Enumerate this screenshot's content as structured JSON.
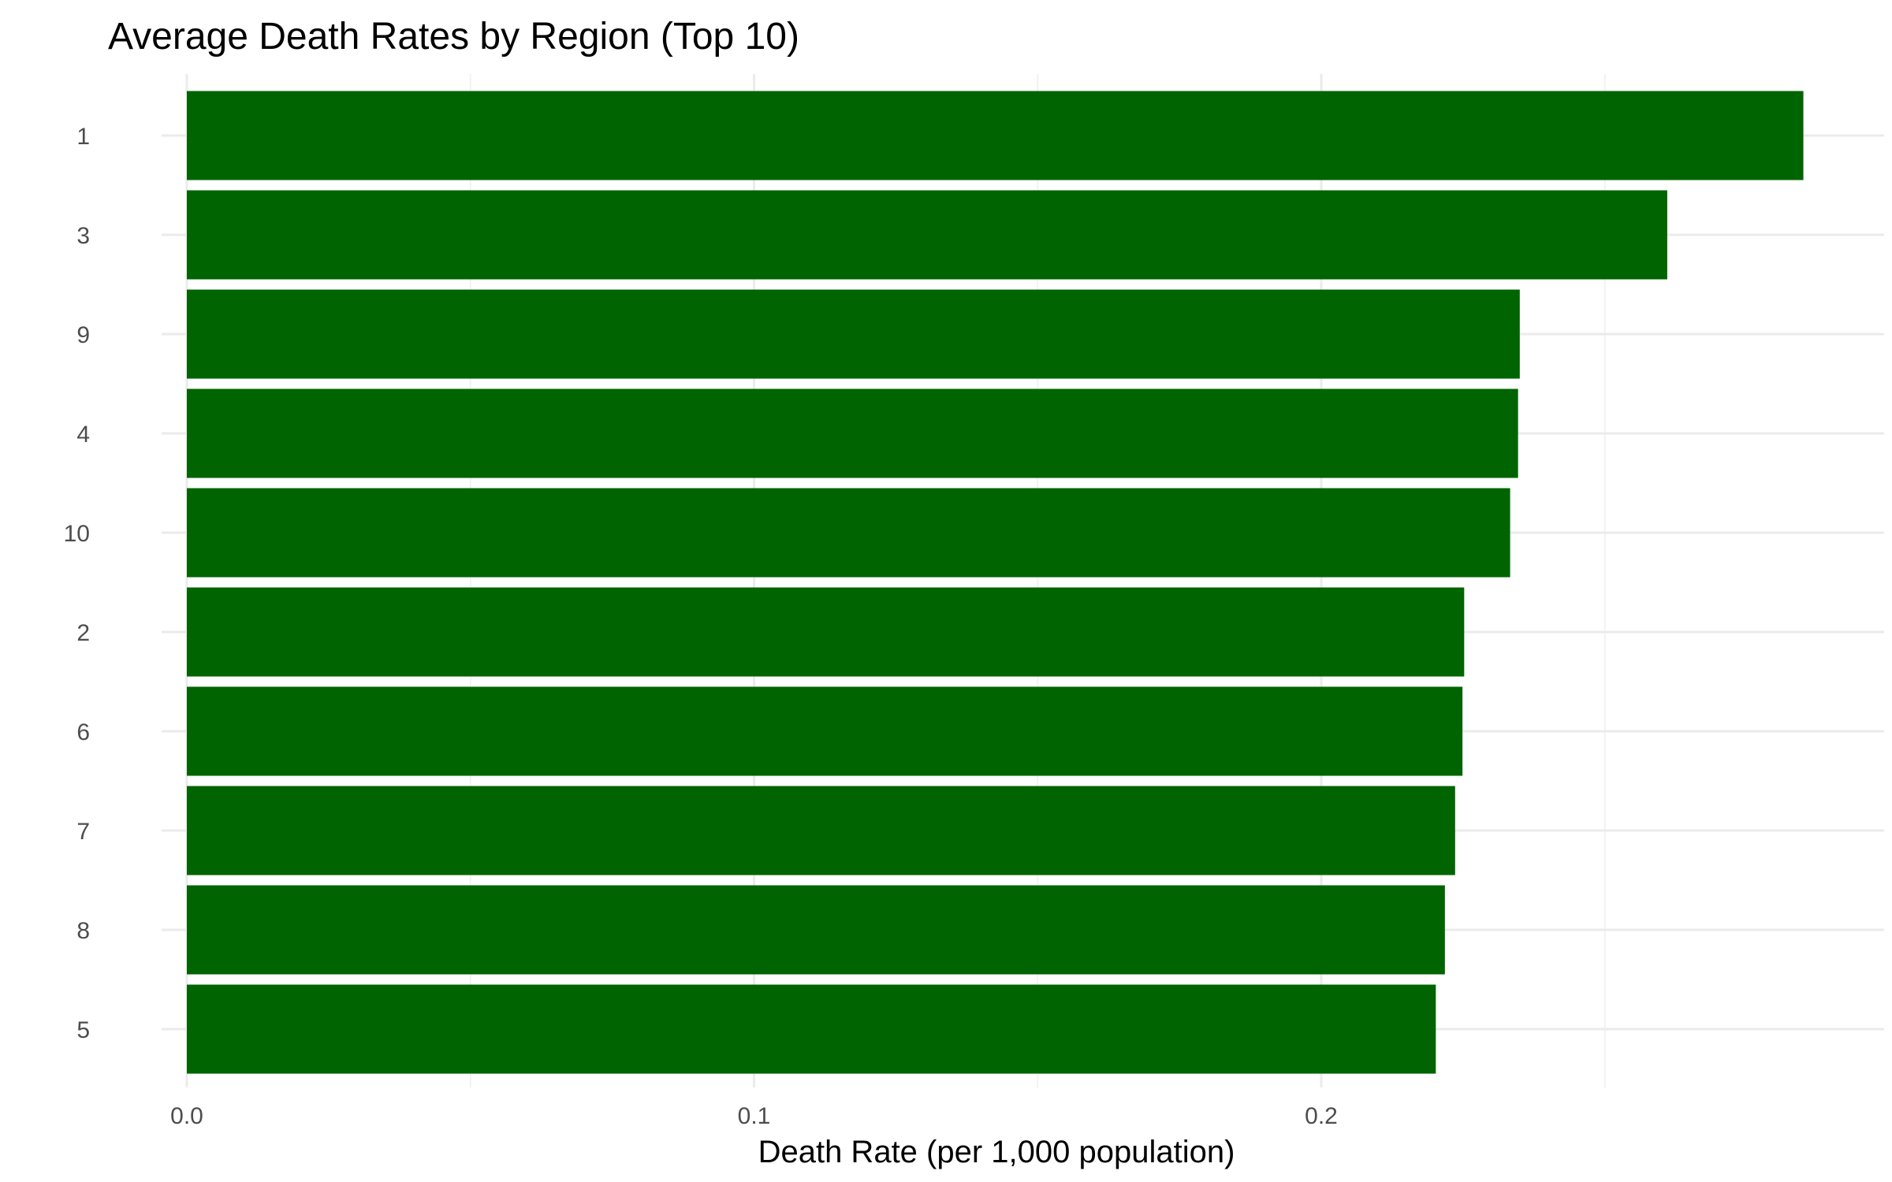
{
  "chart_data": {
    "type": "bar",
    "orientation": "horizontal",
    "title": "Average Death Rates by Region (Top 10)",
    "xlabel": "Death Rate (per 1,000 population)",
    "ylabel": "",
    "categories": [
      "1",
      "3",
      "9",
      "4",
      "10",
      "2",
      "6",
      "7",
      "8",
      "5"
    ],
    "values": [
      0.285,
      0.261,
      0.235,
      0.2347,
      0.2333,
      0.2252,
      0.2249,
      0.2236,
      0.2218,
      0.2202
    ],
    "xlim": [
      0,
      0.3
    ],
    "x_ticks": [
      0.0,
      0.1,
      0.2
    ],
    "x_tick_labels": [
      "0.0",
      "0.1",
      "0.2"
    ],
    "grid": true,
    "legend": "none",
    "bar_color": "#006400"
  }
}
